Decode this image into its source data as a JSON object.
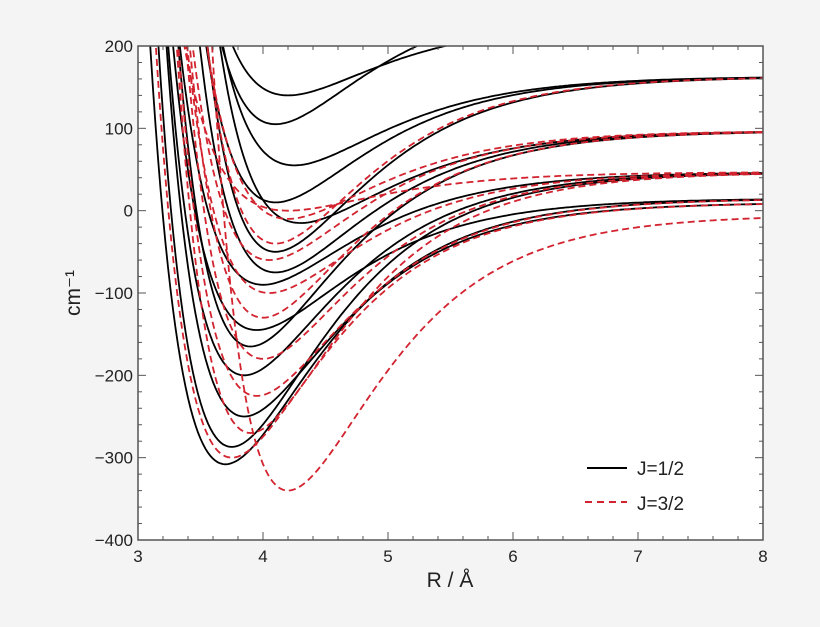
{
  "chart_data": {
    "type": "line",
    "xlabel": "R / Å",
    "ylabel": "cm⁻¹",
    "xlim": [
      3,
      8
    ],
    "ylim": [
      -400,
      200
    ],
    "xticks": [
      "3",
      "4",
      "5",
      "6",
      "7",
      "8"
    ],
    "yticks": [
      "−400",
      "−300",
      "−200",
      "−100",
      "0",
      "100",
      "200"
    ],
    "grid": false,
    "legend_position": "bottom-right",
    "series": [
      {
        "name": "J=1/2",
        "color": "#000000",
        "style": "solid",
        "curves": [
          {
            "min_R": 3.7,
            "min_E": -308,
            "limit_E": 15
          },
          {
            "min_R": 3.75,
            "min_E": -287,
            "limit_E": 47
          },
          {
            "min_R": 3.85,
            "min_E": -250,
            "limit_E": 10
          },
          {
            "min_R": 3.85,
            "min_E": -200,
            "limit_E": 47
          },
          {
            "min_R": 3.9,
            "min_E": -165,
            "limit_E": 97
          },
          {
            "min_R": 3.95,
            "min_E": -145,
            "limit_E": 15
          },
          {
            "min_R": 4.0,
            "min_E": -90,
            "limit_E": 47
          },
          {
            "min_R": 4.1,
            "min_E": -75,
            "limit_E": 97
          },
          {
            "min_R": 4.1,
            "min_E": -50,
            "limit_E": 163
          },
          {
            "min_R": 4.3,
            "min_E": -15,
            "limit_E": 97
          },
          {
            "min_R": 4.1,
            "min_E": 10,
            "limit_E": 163
          },
          {
            "min_R": 4.25,
            "min_E": 55,
            "limit_E": 163
          },
          {
            "min_R": 4.2,
            "min_E": 140,
            "limit_E": 230
          },
          {
            "min_R": 4.1,
            "min_E": 105,
            "limit_E": 260
          }
        ]
      },
      {
        "name": "J=3/2",
        "color": "#d2232f",
        "style": "dashed",
        "curves": [
          {
            "min_R": 4.2,
            "min_E": -340,
            "limit_E": -5
          },
          {
            "min_R": 3.75,
            "min_E": -300,
            "limit_E": 10
          },
          {
            "min_R": 3.9,
            "min_E": -270,
            "limit_E": 47
          },
          {
            "min_R": 3.95,
            "min_E": -225,
            "limit_E": 15
          },
          {
            "min_R": 4.0,
            "min_E": -180,
            "limit_E": 47
          },
          {
            "min_R": 4.0,
            "min_E": -130,
            "limit_E": 97
          },
          {
            "min_R": 4.05,
            "min_E": -100,
            "limit_E": 47
          },
          {
            "min_R": 4.05,
            "min_E": -60,
            "limit_E": 97
          },
          {
            "min_R": 4.1,
            "min_E": -40,
            "limit_E": 163
          },
          {
            "min_R": 4.2,
            "min_E": -10,
            "limit_E": 97
          },
          {
            "min_R": 4.2,
            "min_E": 0,
            "limit_E": 47
          }
        ]
      }
    ]
  }
}
